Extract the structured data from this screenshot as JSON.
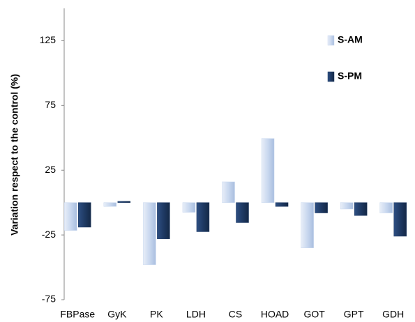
{
  "chart_data": {
    "type": "bar",
    "y_label": "Variation respect to the control (%)",
    "categories": [
      "FBPase",
      "GyK",
      "PK",
      "LDH",
      "CS",
      "HOAD",
      "GOT",
      "GPT",
      "GDH"
    ],
    "series": [
      {
        "name": "S-AM",
        "color": "#c9d8ef",
        "values": [
          -21.5,
          -3,
          -48,
          -7.5,
          16,
          49.5,
          -35,
          -5,
          -8
        ]
      },
      {
        "name": "S-PM",
        "color": "#1f3a64",
        "values": [
          -19,
          1,
          -28,
          -22.5,
          -15.5,
          -3,
          -8,
          -10,
          -26
        ]
      }
    ],
    "ylim": [
      -75,
      150
    ],
    "yticks": [
      -75,
      -25,
      25,
      75,
      125
    ],
    "grid": false,
    "legend": "top-right"
  }
}
